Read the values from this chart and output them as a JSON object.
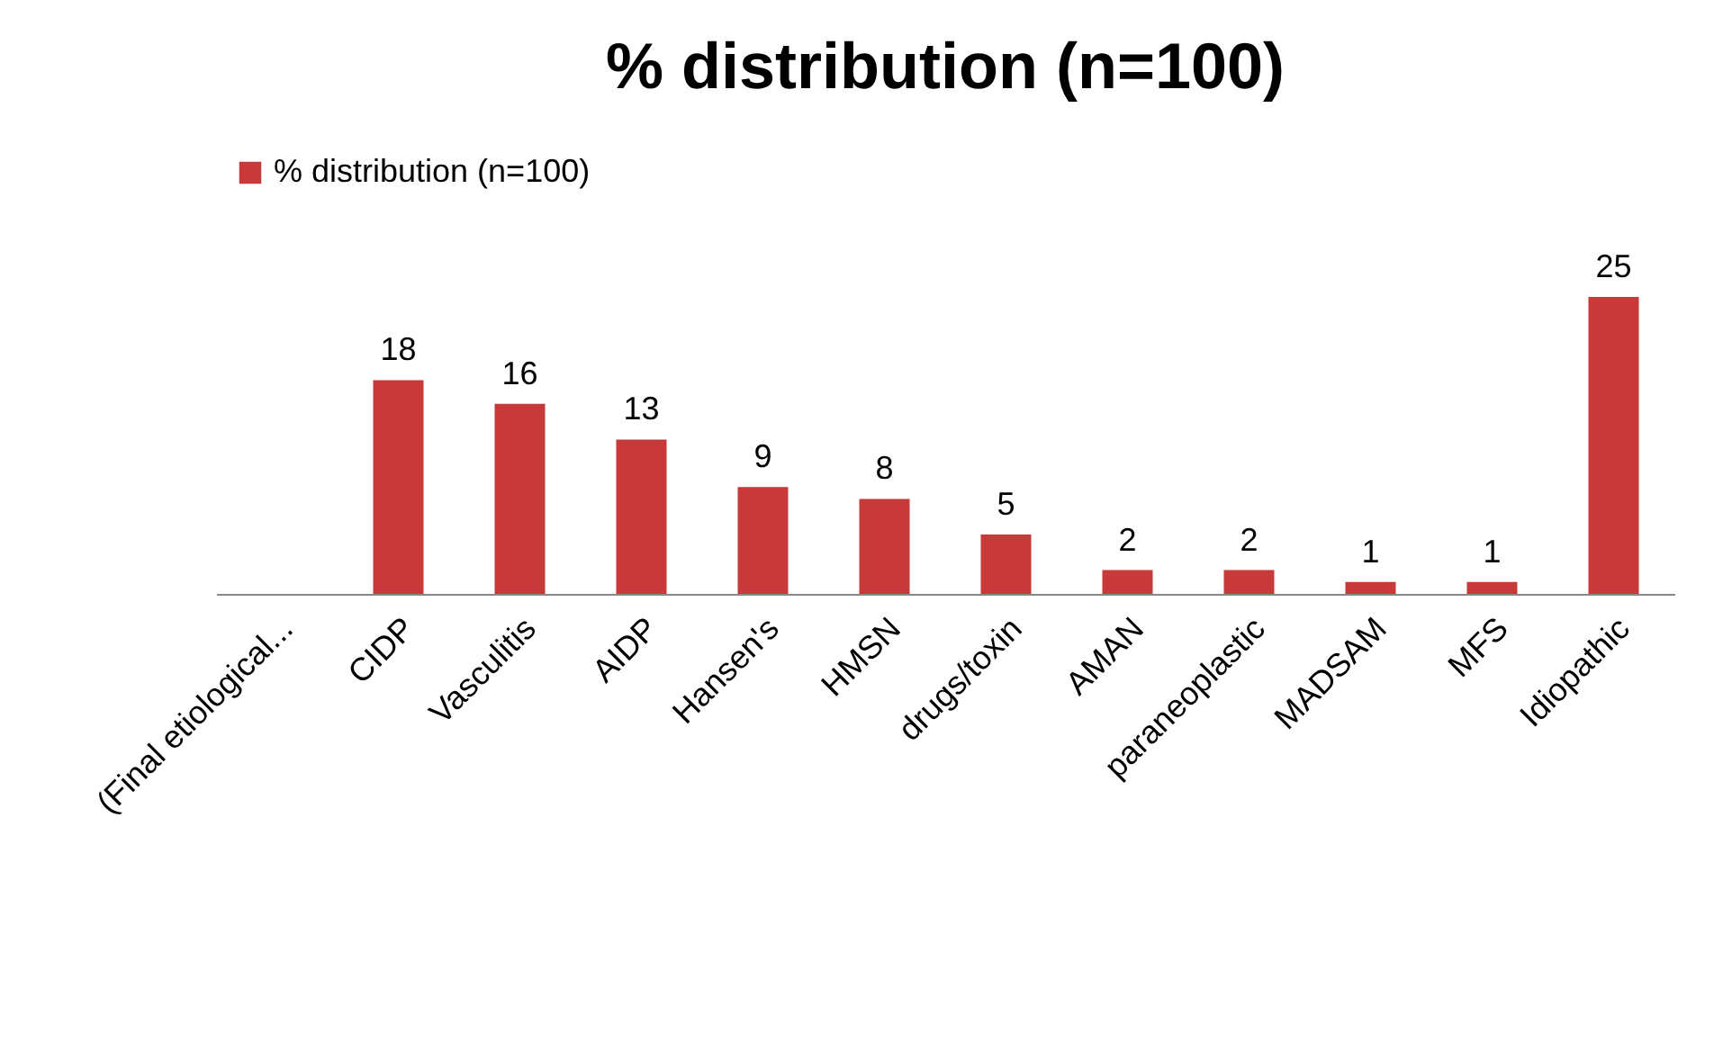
{
  "chart_data": {
    "type": "bar",
    "title": "% distribution (n=100)",
    "categories": [
      "(Final etiological...",
      "CIDP",
      "Vasculitis",
      "AIDP",
      "Hansen's",
      "HMSN",
      "drugs/toxin",
      "AMAN",
      "paraneoplastic",
      "MADSAM",
      "MFS",
      "Idiopathic"
    ],
    "series": [
      {
        "name": "% distribution (n=100)",
        "color": "#c83a3a",
        "values": [
          null,
          18,
          16,
          13,
          9,
          8,
          5,
          2,
          2,
          1,
          1,
          25
        ]
      }
    ],
    "data_labels": true,
    "legend": "top",
    "grid": false
  }
}
